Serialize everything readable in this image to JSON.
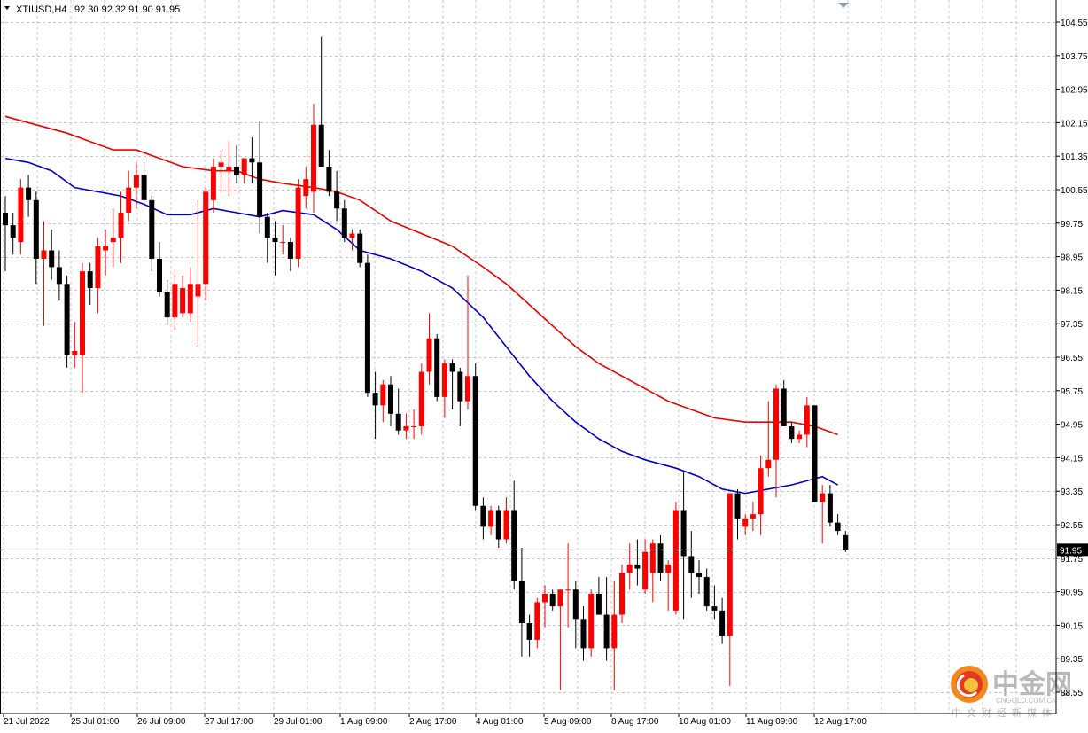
{
  "header": {
    "symbol": "XTIUSD,H4",
    "ohlc": "92.30 92.32 91.90 91.95"
  },
  "colors": {
    "bull": "#ff0000",
    "bear": "#000000",
    "ma_fast": "#0000cc",
    "ma_slow": "#ee0000",
    "grid": "#c8c8c8",
    "price_label_bg": "#000000",
    "price_label_text": "#ffffff"
  },
  "watermark": {
    "name": "中金网",
    "url": "CNGOLD.COM.CN",
    "tagline": "中文财经新媒体",
    "logo": "cngold-logo"
  },
  "chart_data": {
    "type": "candlestick",
    "timeframe": "H4",
    "ylim": [
      88.55,
      104.95
    ],
    "y_ticks": [
      "104.55",
      "103.75",
      "102.95",
      "102.15",
      "101.35",
      "100.55",
      "99.75",
      "98.95",
      "98.15",
      "97.35",
      "96.55",
      "95.75",
      "94.95",
      "94.15",
      "93.35",
      "92.55",
      "91.75",
      "90.95",
      "90.15",
      "89.35",
      "88.55"
    ],
    "x_ticks": [
      "21 Jul 2022",
      "25 Jul 01:00",
      "26 Jul 09:00",
      "27 Jul 17:00",
      "29 Jul 01:00",
      "1 Aug 09:00",
      "2 Aug 17:00",
      "4 Aug 01:00",
      "5 Aug 09:00",
      "8 Aug 17:00",
      "10 Aug 01:00",
      "11 Aug 09:00",
      "12 Aug 17:00"
    ],
    "current_price": "91.95",
    "grid": true,
    "candles": [
      {
        "o": 100.0,
        "h": 100.4,
        "l": 98.6,
        "c": 99.7
      },
      {
        "o": 99.7,
        "h": 100.0,
        "l": 99.0,
        "c": 99.4
      },
      {
        "o": 99.3,
        "h": 100.8,
        "l": 99.0,
        "c": 100.6
      },
      {
        "o": 100.6,
        "h": 100.9,
        "l": 99.9,
        "c": 100.3
      },
      {
        "o": 100.3,
        "h": 100.5,
        "l": 98.3,
        "c": 98.9
      },
      {
        "o": 98.9,
        "h": 99.8,
        "l": 97.3,
        "c": 99.1
      },
      {
        "o": 99.1,
        "h": 99.6,
        "l": 98.4,
        "c": 98.7
      },
      {
        "o": 98.7,
        "h": 99.1,
        "l": 97.9,
        "c": 98.3
      },
      {
        "o": 98.3,
        "h": 98.5,
        "l": 96.3,
        "c": 96.6
      },
      {
        "o": 96.6,
        "h": 97.4,
        "l": 96.3,
        "c": 96.7
      },
      {
        "o": 96.6,
        "h": 98.8,
        "l": 95.7,
        "c": 98.6
      },
      {
        "o": 98.6,
        "h": 98.8,
        "l": 97.8,
        "c": 98.2
      },
      {
        "o": 98.2,
        "h": 99.4,
        "l": 97.6,
        "c": 99.2
      },
      {
        "o": 99.1,
        "h": 99.6,
        "l": 98.5,
        "c": 99.2
      },
      {
        "o": 99.3,
        "h": 100.1,
        "l": 98.7,
        "c": 99.4
      },
      {
        "o": 99.4,
        "h": 100.5,
        "l": 98.8,
        "c": 100.0
      },
      {
        "o": 100.0,
        "h": 101.0,
        "l": 99.8,
        "c": 100.6
      },
      {
        "o": 100.6,
        "h": 101.2,
        "l": 100.1,
        "c": 100.9
      },
      {
        "o": 100.9,
        "h": 101.2,
        "l": 100.2,
        "c": 100.3
      },
      {
        "o": 100.3,
        "h": 100.4,
        "l": 98.6,
        "c": 98.9
      },
      {
        "o": 98.9,
        "h": 99.3,
        "l": 98.0,
        "c": 98.1
      },
      {
        "o": 98.1,
        "h": 98.4,
        "l": 97.3,
        "c": 97.5
      },
      {
        "o": 97.5,
        "h": 98.6,
        "l": 97.2,
        "c": 98.3
      },
      {
        "o": 97.6,
        "h": 98.5,
        "l": 97.5,
        "c": 98.2
      },
      {
        "o": 97.6,
        "h": 98.7,
        "l": 97.4,
        "c": 98.3
      },
      {
        "o": 98.0,
        "h": 100.3,
        "l": 96.8,
        "c": 98.3
      },
      {
        "o": 98.3,
        "h": 100.6,
        "l": 97.9,
        "c": 100.5
      },
      {
        "o": 100.3,
        "h": 101.3,
        "l": 100.0,
        "c": 101.1
      },
      {
        "o": 101.1,
        "h": 101.5,
        "l": 100.5,
        "c": 101.2
      },
      {
        "o": 101.0,
        "h": 101.7,
        "l": 100.4,
        "c": 101.1
      },
      {
        "o": 101.1,
        "h": 101.6,
        "l": 100.7,
        "c": 100.9
      },
      {
        "o": 100.9,
        "h": 101.3,
        "l": 100.7,
        "c": 101.3
      },
      {
        "o": 101.3,
        "h": 101.8,
        "l": 100.7,
        "c": 101.2
      },
      {
        "o": 101.2,
        "h": 102.2,
        "l": 99.5,
        "c": 99.9
      },
      {
        "o": 99.9,
        "h": 100.0,
        "l": 98.8,
        "c": 99.4
      },
      {
        "o": 99.4,
        "h": 99.8,
        "l": 98.5,
        "c": 99.3
      },
      {
        "o": 99.3,
        "h": 99.7,
        "l": 99.0,
        "c": 99.3
      },
      {
        "o": 99.3,
        "h": 99.4,
        "l": 98.6,
        "c": 98.9
      },
      {
        "o": 98.9,
        "h": 100.8,
        "l": 98.7,
        "c": 100.6
      },
      {
        "o": 100.4,
        "h": 101.1,
        "l": 100.1,
        "c": 100.8
      },
      {
        "o": 100.5,
        "h": 102.6,
        "l": 100.0,
        "c": 102.1
      },
      {
        "o": 102.1,
        "h": 104.2,
        "l": 101.1,
        "c": 101.1
      },
      {
        "o": 101.1,
        "h": 101.5,
        "l": 100.4,
        "c": 100.5
      },
      {
        "o": 100.5,
        "h": 101.0,
        "l": 99.8,
        "c": 100.1
      },
      {
        "o": 100.1,
        "h": 100.3,
        "l": 99.3,
        "c": 99.4
      },
      {
        "o": 99.4,
        "h": 99.6,
        "l": 99.1,
        "c": 99.5
      },
      {
        "o": 99.5,
        "h": 99.6,
        "l": 98.7,
        "c": 98.8
      },
      {
        "o": 98.8,
        "h": 99.0,
        "l": 95.6,
        "c": 95.7
      },
      {
        "o": 95.7,
        "h": 96.2,
        "l": 94.6,
        "c": 95.4
      },
      {
        "o": 95.4,
        "h": 96.0,
        "l": 95.0,
        "c": 95.9
      },
      {
        "o": 95.9,
        "h": 96.1,
        "l": 94.9,
        "c": 95.2
      },
      {
        "o": 95.2,
        "h": 95.8,
        "l": 94.7,
        "c": 94.8
      },
      {
        "o": 94.8,
        "h": 95.2,
        "l": 94.6,
        "c": 94.9
      },
      {
        "o": 94.9,
        "h": 95.3,
        "l": 94.6,
        "c": 94.9
      },
      {
        "o": 94.9,
        "h": 96.4,
        "l": 94.7,
        "c": 96.2
      },
      {
        "o": 96.2,
        "h": 97.6,
        "l": 95.9,
        "c": 97.0
      },
      {
        "o": 97.0,
        "h": 97.1,
        "l": 95.5,
        "c": 95.6
      },
      {
        "o": 95.6,
        "h": 96.5,
        "l": 95.1,
        "c": 96.4
      },
      {
        "o": 96.4,
        "h": 96.5,
        "l": 95.3,
        "c": 96.2
      },
      {
        "o": 96.2,
        "h": 96.3,
        "l": 94.9,
        "c": 95.5
      },
      {
        "o": 95.5,
        "h": 98.5,
        "l": 95.3,
        "c": 96.1
      },
      {
        "o": 96.1,
        "h": 96.4,
        "l": 92.9,
        "c": 93.0
      },
      {
        "o": 93.0,
        "h": 93.2,
        "l": 92.2,
        "c": 92.5
      },
      {
        "o": 92.5,
        "h": 93.0,
        "l": 92.3,
        "c": 92.9
      },
      {
        "o": 92.9,
        "h": 93.0,
        "l": 92.0,
        "c": 92.2
      },
      {
        "o": 92.2,
        "h": 93.2,
        "l": 92.1,
        "c": 92.9
      },
      {
        "o": 92.9,
        "h": 93.6,
        "l": 91.0,
        "c": 91.2
      },
      {
        "o": 91.2,
        "h": 92.0,
        "l": 89.4,
        "c": 90.2
      },
      {
        "o": 90.2,
        "h": 90.4,
        "l": 89.4,
        "c": 89.8
      },
      {
        "o": 89.8,
        "h": 90.8,
        "l": 89.6,
        "c": 90.7
      },
      {
        "o": 90.7,
        "h": 91.1,
        "l": 90.1,
        "c": 90.9
      },
      {
        "o": 90.9,
        "h": 91.0,
        "l": 90.5,
        "c": 90.6
      },
      {
        "o": 90.6,
        "h": 91.0,
        "l": 88.6,
        "c": 91.0
      },
      {
        "o": 91.0,
        "h": 92.1,
        "l": 90.1,
        "c": 91.0
      },
      {
        "o": 91.0,
        "h": 91.2,
        "l": 89.6,
        "c": 90.3
      },
      {
        "o": 90.3,
        "h": 90.6,
        "l": 89.3,
        "c": 89.6
      },
      {
        "o": 89.6,
        "h": 91.0,
        "l": 89.4,
        "c": 90.9
      },
      {
        "o": 90.9,
        "h": 91.3,
        "l": 90.4,
        "c": 90.4
      },
      {
        "o": 90.4,
        "h": 91.3,
        "l": 89.3,
        "c": 89.6
      },
      {
        "o": 89.6,
        "h": 91.2,
        "l": 88.6,
        "c": 90.4
      },
      {
        "o": 90.4,
        "h": 91.6,
        "l": 90.2,
        "c": 91.4
      },
      {
        "o": 91.4,
        "h": 92.1,
        "l": 91.0,
        "c": 91.6
      },
      {
        "o": 91.6,
        "h": 92.2,
        "l": 91.1,
        "c": 91.5
      },
      {
        "o": 91.0,
        "h": 92.2,
        "l": 90.9,
        "c": 91.9
      },
      {
        "o": 91.4,
        "h": 92.2,
        "l": 90.7,
        "c": 92.1
      },
      {
        "o": 92.1,
        "h": 92.3,
        "l": 91.2,
        "c": 91.4
      },
      {
        "o": 91.4,
        "h": 91.7,
        "l": 90.5,
        "c": 91.6
      },
      {
        "o": 90.5,
        "h": 93.1,
        "l": 90.4,
        "c": 92.9
      },
      {
        "o": 92.9,
        "h": 93.8,
        "l": 90.3,
        "c": 91.8
      },
      {
        "o": 91.8,
        "h": 92.4,
        "l": 90.8,
        "c": 91.4
      },
      {
        "o": 91.4,
        "h": 91.7,
        "l": 90.9,
        "c": 91.3
      },
      {
        "o": 91.3,
        "h": 91.5,
        "l": 90.5,
        "c": 90.6
      },
      {
        "o": 90.6,
        "h": 91.1,
        "l": 90.3,
        "c": 90.5
      },
      {
        "o": 90.5,
        "h": 90.8,
        "l": 89.7,
        "c": 89.9
      },
      {
        "o": 89.9,
        "h": 93.3,
        "l": 88.7,
        "c": 93.3
      },
      {
        "o": 93.3,
        "h": 93.4,
        "l": 92.2,
        "c": 92.7
      },
      {
        "o": 92.5,
        "h": 92.8,
        "l": 92.3,
        "c": 92.7
      },
      {
        "o": 92.7,
        "h": 93.1,
        "l": 92.4,
        "c": 92.8
      },
      {
        "o": 92.8,
        "h": 94.2,
        "l": 92.3,
        "c": 93.9
      },
      {
        "o": 93.9,
        "h": 95.5,
        "l": 93.7,
        "c": 94.1
      },
      {
        "o": 94.1,
        "h": 95.9,
        "l": 93.2,
        "c": 95.8
      },
      {
        "o": 95.8,
        "h": 96.0,
        "l": 94.9,
        "c": 94.9
      },
      {
        "o": 94.9,
        "h": 95.0,
        "l": 94.5,
        "c": 94.6
      },
      {
        "o": 94.6,
        "h": 94.8,
        "l": 94.5,
        "c": 94.7
      },
      {
        "o": 94.7,
        "h": 95.6,
        "l": 94.4,
        "c": 95.4
      },
      {
        "o": 95.4,
        "h": 95.4,
        "l": 93.1,
        "c": 93.1
      },
      {
        "o": 93.1,
        "h": 93.5,
        "l": 92.1,
        "c": 93.3
      },
      {
        "o": 93.3,
        "h": 93.5,
        "l": 92.5,
        "c": 92.6
      },
      {
        "o": 92.6,
        "h": 92.8,
        "l": 92.3,
        "c": 92.4
      },
      {
        "o": 92.3,
        "h": 92.4,
        "l": 91.9,
        "c": 91.95
      }
    ],
    "ma_slow": [
      [
        0,
        102.3
      ],
      [
        4,
        102.1
      ],
      [
        8,
        101.9
      ],
      [
        11,
        101.7
      ],
      [
        14,
        101.5
      ],
      [
        17,
        101.5
      ],
      [
        20,
        101.3
      ],
      [
        23,
        101.1
      ],
      [
        27,
        101.0
      ],
      [
        30,
        101.0
      ],
      [
        33,
        100.8
      ],
      [
        36,
        100.7
      ],
      [
        40,
        100.6
      ],
      [
        43,
        100.5
      ],
      [
        46,
        100.3
      ],
      [
        50,
        99.8
      ],
      [
        54,
        99.5
      ],
      [
        58,
        99.2
      ],
      [
        62,
        98.7
      ],
      [
        65,
        98.3
      ],
      [
        68,
        97.8
      ],
      [
        71,
        97.3
      ],
      [
        74,
        96.8
      ],
      [
        77,
        96.4
      ],
      [
        80,
        96.1
      ],
      [
        83,
        95.8
      ],
      [
        86,
        95.5
      ],
      [
        89,
        95.3
      ],
      [
        92,
        95.1
      ],
      [
        96,
        95.0
      ],
      [
        99,
        95.0
      ],
      [
        102,
        95.0
      ],
      [
        105,
        94.9
      ],
      [
        108,
        94.7
      ]
    ],
    "ma_fast": [
      [
        0,
        101.3
      ],
      [
        3,
        101.2
      ],
      [
        6,
        101.0
      ],
      [
        9,
        100.6
      ],
      [
        12,
        100.5
      ],
      [
        15,
        100.4
      ],
      [
        18,
        100.2
      ],
      [
        21,
        99.95
      ],
      [
        24,
        99.95
      ],
      [
        27,
        100.1
      ],
      [
        30,
        100.0
      ],
      [
        33,
        99.9
      ],
      [
        36,
        100.05
      ],
      [
        40,
        99.95
      ],
      [
        43,
        99.6
      ],
      [
        46,
        99.1
      ],
      [
        50,
        98.9
      ],
      [
        54,
        98.6
      ],
      [
        58,
        98.2
      ],
      [
        62,
        97.5
      ],
      [
        65,
        96.8
      ],
      [
        68,
        96.1
      ],
      [
        71,
        95.5
      ],
      [
        74,
        95.0
      ],
      [
        77,
        94.6
      ],
      [
        80,
        94.3
      ],
      [
        83,
        94.1
      ],
      [
        87,
        93.9
      ],
      [
        90,
        93.7
      ],
      [
        93,
        93.4
      ],
      [
        96,
        93.3
      ],
      [
        99,
        93.4
      ],
      [
        102,
        93.5
      ],
      [
        104,
        93.6
      ],
      [
        106,
        93.7
      ],
      [
        108,
        93.5
      ]
    ]
  }
}
